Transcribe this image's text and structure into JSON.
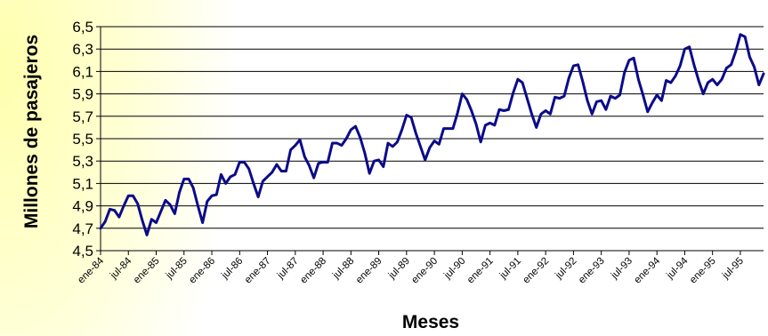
{
  "chart_data": {
    "type": "line",
    "xlabel": "Meses",
    "ylabel": "Millones de pasajeros",
    "ylim": [
      4.5,
      6.5
    ],
    "yticks": [
      "4,5",
      "4,7",
      "4,9",
      "5,1",
      "5,3",
      "5,5",
      "5,7",
      "5,9",
      "6,1",
      "6,3",
      "6,5"
    ],
    "xticks": [
      "ene-84",
      "jul-84",
      "ene-85",
      "jul-85",
      "ene-86",
      "jul-86",
      "ene-87",
      "jul-87",
      "ene-88",
      "jul-88",
      "ene-89",
      "jul-89",
      "ene-90",
      "jul-90",
      "ene-91",
      "jul-91",
      "ene-92",
      "jul-92",
      "ene-93",
      "jul-93",
      "ene-94",
      "jul-94",
      "ene-95",
      "jul-95"
    ],
    "grid": "horizontal",
    "line_color": "#0b0b8a",
    "series": [
      {
        "values": [
          4.7,
          4.76,
          4.87,
          4.86,
          4.8,
          4.9,
          4.99,
          4.99,
          4.92,
          4.77,
          4.64,
          4.78,
          4.75,
          4.85,
          4.95,
          4.91,
          4.83,
          5.02,
          5.14,
          5.14,
          5.06,
          4.9,
          4.75,
          4.94,
          4.99,
          5.0,
          5.18,
          5.1,
          5.16,
          5.18,
          5.29,
          5.29,
          5.23,
          5.1,
          4.98,
          5.12,
          5.16,
          5.2,
          5.27,
          5.21,
          5.21,
          5.4,
          5.44,
          5.49,
          5.34,
          5.26,
          5.15,
          5.28,
          5.29,
          5.29,
          5.46,
          5.46,
          5.44,
          5.5,
          5.58,
          5.61,
          5.51,
          5.37,
          5.19,
          5.3,
          5.31,
          5.25,
          5.46,
          5.43,
          5.47,
          5.58,
          5.71,
          5.69,
          5.55,
          5.43,
          5.31,
          5.42,
          5.48,
          5.45,
          5.59,
          5.59,
          5.59,
          5.73,
          5.9,
          5.85,
          5.75,
          5.63,
          5.47,
          5.62,
          5.64,
          5.62,
          5.76,
          5.75,
          5.76,
          5.91,
          6.03,
          6.0,
          5.86,
          5.72,
          5.6,
          5.72,
          5.75,
          5.72,
          5.87,
          5.86,
          5.88,
          6.04,
          6.15,
          6.16,
          6.01,
          5.84,
          5.72,
          5.83,
          5.84,
          5.76,
          5.88,
          5.86,
          5.89,
          6.09,
          6.2,
          6.22,
          6.03,
          5.89,
          5.74,
          5.82,
          5.89,
          5.84,
          6.02,
          6.0,
          6.06,
          6.15,
          6.3,
          6.32,
          6.16,
          6.02,
          5.9,
          6.0,
          6.03,
          5.98,
          6.03,
          6.13,
          6.16,
          6.28,
          6.43,
          6.41,
          6.23,
          6.14,
          5.98,
          6.08
        ]
      }
    ]
  }
}
